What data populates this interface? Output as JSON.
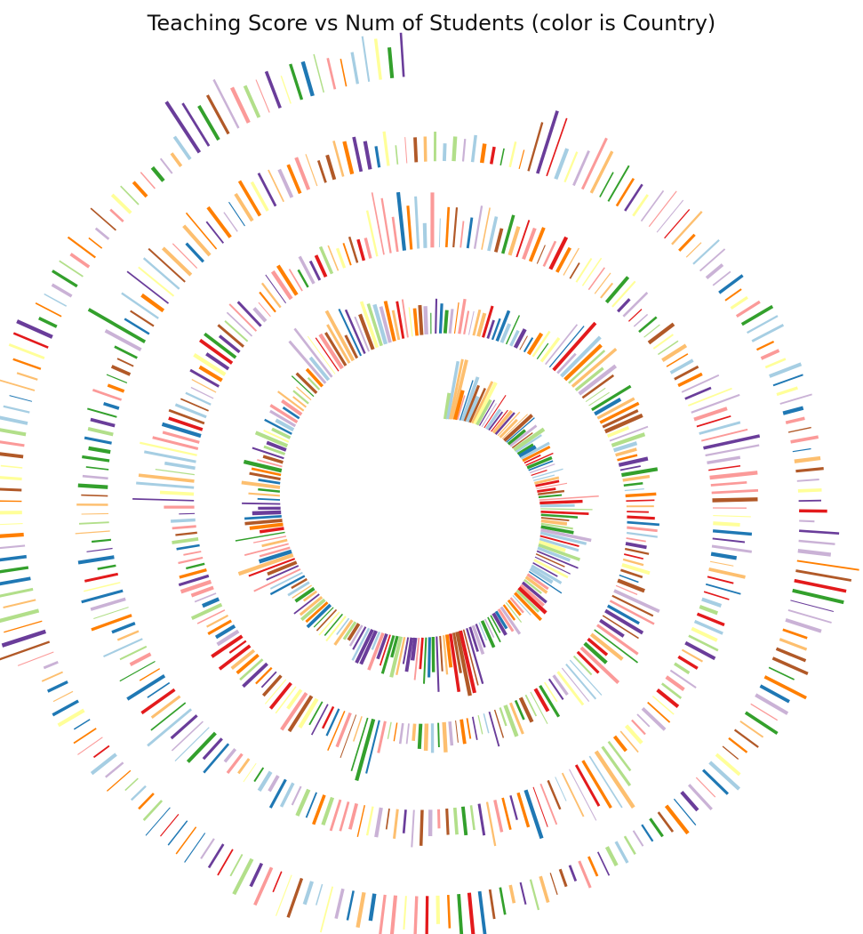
{
  "chart_data": {
    "type": "bar",
    "layout": "spiral",
    "title": "Teaching Score vs Num of Students (color is Country)",
    "xlabel": "",
    "ylabel": "",
    "grid": false,
    "legend": "none",
    "encoding": {
      "bar_length": "Teaching Score",
      "bar_width": "Num of Students",
      "bar_color": "Country"
    },
    "palette": [
      "#a6cee3",
      "#1f78b4",
      "#b2df8a",
      "#33a02c",
      "#fb9a99",
      "#e31a1c",
      "#fdbf6f",
      "#ff7f00",
      "#cab2d6",
      "#6a3d9a",
      "#ffff99",
      "#b15928"
    ],
    "series": [
      {
        "values": [
          78,
          82,
          86,
          80,
          75,
          73,
          70,
          68,
          72,
          66,
          63,
          61,
          64,
          60,
          58,
          55,
          57,
          53,
          50,
          52,
          48,
          46,
          49,
          45,
          47,
          44,
          42,
          45,
          41,
          43,
          40,
          38,
          41,
          39,
          36,
          38,
          35,
          37,
          34,
          33,
          36,
          32,
          34,
          31,
          33,
          30,
          32,
          29,
          31,
          28
        ]
      }
    ]
  }
}
